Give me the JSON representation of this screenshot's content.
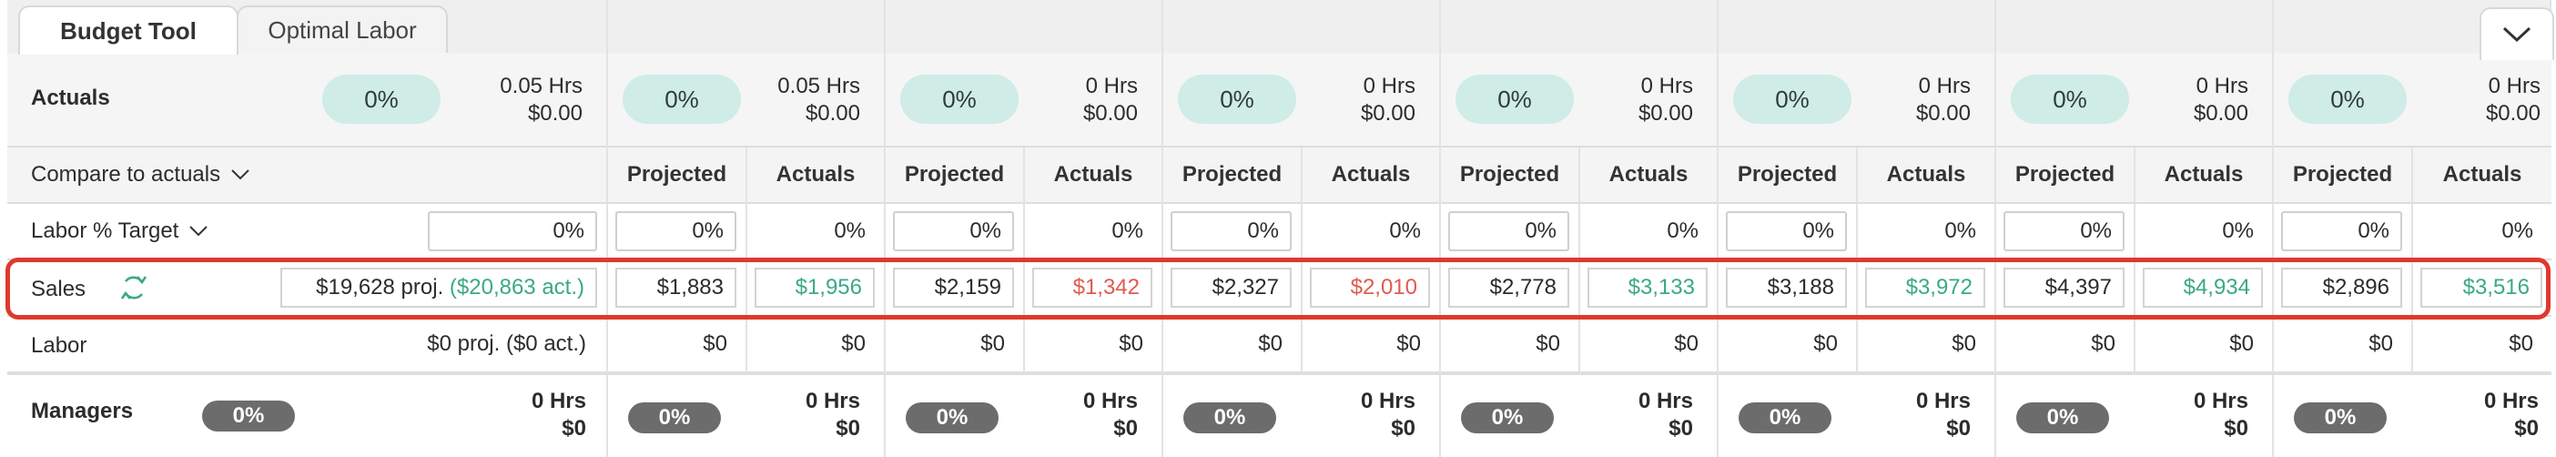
{
  "tabs": [
    {
      "label": "Budget Tool",
      "active": true
    },
    {
      "label": "Optimal Labor",
      "active": false
    }
  ],
  "actuals": {
    "label": "Actuals",
    "summary": {
      "pct": "0%",
      "hrs": "0.05 Hrs",
      "amount": "$0.00"
    },
    "days": [
      {
        "pct": "0%",
        "hrs": "0.05 Hrs",
        "amount": "$0.00"
      },
      {
        "pct": "0%",
        "hrs": "0 Hrs",
        "amount": "$0.00"
      },
      {
        "pct": "0%",
        "hrs": "0 Hrs",
        "amount": "$0.00"
      },
      {
        "pct": "0%",
        "hrs": "0 Hrs",
        "amount": "$0.00"
      },
      {
        "pct": "0%",
        "hrs": "0 Hrs",
        "amount": "$0.00"
      },
      {
        "pct": "0%",
        "hrs": "0 Hrs",
        "amount": "$0.00"
      },
      {
        "pct": "0%",
        "hrs": "0 Hrs",
        "amount": "$0.00"
      }
    ]
  },
  "compare": {
    "label": "Compare to actuals",
    "projected_label": "Projected",
    "actuals_label": "Actuals"
  },
  "labor_target": {
    "label": "Labor % Target",
    "summary": "0%",
    "days": [
      {
        "projected": "0%",
        "actual": "0%"
      },
      {
        "projected": "0%",
        "actual": "0%"
      },
      {
        "projected": "0%",
        "actual": "0%"
      },
      {
        "projected": "0%",
        "actual": "0%"
      },
      {
        "projected": "0%",
        "actual": "0%"
      },
      {
        "projected": "0%",
        "actual": "0%"
      },
      {
        "projected": "0%",
        "actual": "0%"
      }
    ]
  },
  "sales": {
    "label": "Sales",
    "proj_total": "$19,628 proj.",
    "act_total": "($20,863 act.)",
    "days": [
      {
        "projected": "$1,883",
        "actual": "$1,956",
        "status": "over"
      },
      {
        "projected": "$2,159",
        "actual": "$1,342",
        "status": "under"
      },
      {
        "projected": "$2,327",
        "actual": "$2,010",
        "status": "under"
      },
      {
        "projected": "$2,778",
        "actual": "$3,133",
        "status": "over"
      },
      {
        "projected": "$3,188",
        "actual": "$3,972",
        "status": "over"
      },
      {
        "projected": "$4,397",
        "actual": "$4,934",
        "status": "over"
      },
      {
        "projected": "$2,896",
        "actual": "$3,516",
        "status": "over"
      }
    ]
  },
  "labor": {
    "label": "Labor",
    "total": "$0 proj. ($0 act.)",
    "days": [
      {
        "projected": "$0",
        "actual": "$0"
      },
      {
        "projected": "$0",
        "actual": "$0"
      },
      {
        "projected": "$0",
        "actual": "$0"
      },
      {
        "projected": "$0",
        "actual": "$0"
      },
      {
        "projected": "$0",
        "actual": "$0"
      },
      {
        "projected": "$0",
        "actual": "$0"
      },
      {
        "projected": "$0",
        "actual": "$0"
      }
    ]
  },
  "managers": {
    "label": "Managers",
    "summary": {
      "pct": "0%",
      "hrs": "0 Hrs",
      "amount": "$0"
    },
    "days": [
      {
        "pct": "0%",
        "hrs": "0 Hrs",
        "amount": "$0"
      },
      {
        "pct": "0%",
        "hrs": "0 Hrs",
        "amount": "$0"
      },
      {
        "pct": "0%",
        "hrs": "0 Hrs",
        "amount": "$0"
      },
      {
        "pct": "0%",
        "hrs": "0 Hrs",
        "amount": "$0"
      },
      {
        "pct": "0%",
        "hrs": "0 Hrs",
        "amount": "$0"
      },
      {
        "pct": "0%",
        "hrs": "0 Hrs",
        "amount": "$0"
      },
      {
        "pct": "0%",
        "hrs": "0 Hrs",
        "amount": "$0"
      }
    ]
  },
  "colors": {
    "over": "#3aa889",
    "under": "#e05a4f",
    "highlight": "#e0382e",
    "teal_pill": "#cfece7",
    "grey_pill": "#6c6c6c"
  },
  "icons": {
    "sync": "refresh-icon",
    "collapse": "chevron-down-icon",
    "dropdown": "chevron-down-icon"
  }
}
